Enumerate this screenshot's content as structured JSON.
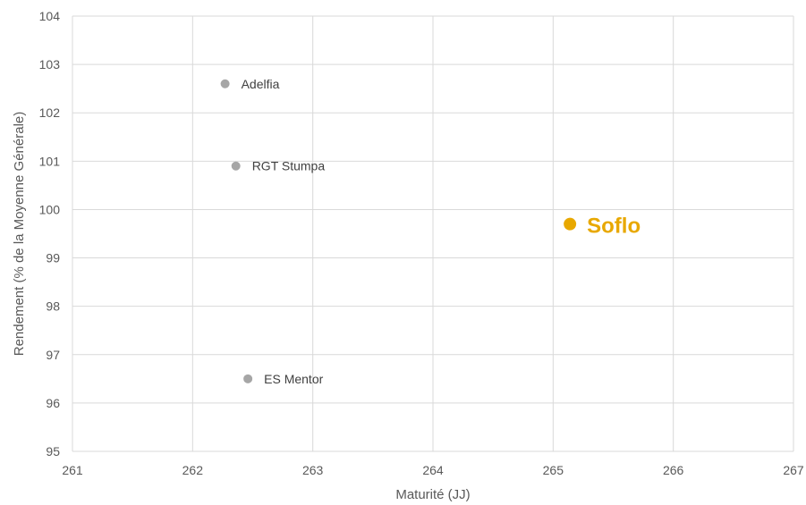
{
  "chart_data": {
    "type": "scatter",
    "title": "",
    "xlabel": "Maturité (JJ)",
    "ylabel": "Rendement (% de la Moyenne Générale)",
    "xlim": [
      261,
      267
    ],
    "ylim": [
      95,
      104
    ],
    "x_ticks": [
      "261",
      "262",
      "263",
      "264",
      "265",
      "266",
      "267"
    ],
    "y_ticks": [
      "95",
      "96",
      "97",
      "98",
      "99",
      "100",
      "101",
      "102",
      "103",
      "104"
    ],
    "grid": true,
    "colors": {
      "default": "#A6A6A6",
      "highlight": "#E8A800",
      "grid": "#D9D9D9"
    },
    "points": [
      {
        "label": "Adelfia",
        "x": 262.27,
        "y": 102.6,
        "highlight": false
      },
      {
        "label": "RGT Stumpa",
        "x": 262.36,
        "y": 100.9,
        "highlight": false
      },
      {
        "label": "ES Mentor",
        "x": 262.46,
        "y": 96.5,
        "highlight": false
      },
      {
        "label": "Soflo",
        "x": 265.14,
        "y": 99.7,
        "highlight": true
      }
    ]
  }
}
